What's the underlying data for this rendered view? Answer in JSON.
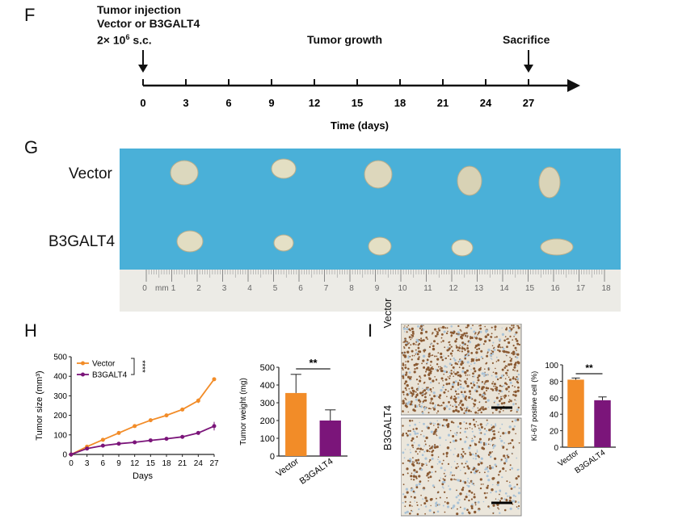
{
  "panels": {
    "f": "F",
    "g": "G",
    "h": "H",
    "i": "I"
  },
  "timeline": {
    "injection_line1": "Tumor injection",
    "injection_line2": "Vector or B3GALT4",
    "injection_line3_prefix": "2× 10",
    "injection_line3_sup": "6",
    "injection_line3_suffix": " s.c.",
    "growth_label": "Tumor growth",
    "sacrifice_label": "Sacrifice",
    "ticks": [
      "0",
      "3",
      "6",
      "9",
      "12",
      "15",
      "18",
      "21",
      "24",
      "27"
    ],
    "axis_title": "Time (days)"
  },
  "photo": {
    "row_labels": [
      "Vector",
      "B3GALT4"
    ],
    "ruler_unit": "mm",
    "ruler_numbers": [
      "0",
      "1",
      "2",
      "3",
      "4",
      "5",
      "6",
      "7",
      "8",
      "9",
      "10",
      "11",
      "12",
      "13",
      "14",
      "15",
      "16",
      "17",
      "18"
    ],
    "background_color": "#4ab0d8"
  },
  "ihc": {
    "row_labels": [
      "Vector",
      "B3GALT4"
    ]
  },
  "colors": {
    "vector": "#f28c28",
    "b3galt4": "#7b157a"
  },
  "chart_data": [
    {
      "type": "line",
      "xlabel": "Days",
      "ylabel": "Tumor size (mm³)",
      "xlim": [
        0,
        27
      ],
      "ylim": [
        0,
        500
      ],
      "xticks": [
        "0",
        "3",
        "6",
        "9",
        "12",
        "15",
        "18",
        "21",
        "24",
        "27"
      ],
      "yticks": [
        "0",
        "100",
        "200",
        "300",
        "400",
        "500"
      ],
      "x": [
        0,
        3,
        6,
        9,
        12,
        15,
        18,
        21,
        24,
        27
      ],
      "series": [
        {
          "name": "Vector",
          "values": [
            0,
            40,
            75,
            110,
            145,
            175,
            200,
            230,
            275,
            385
          ],
          "error": [
            0,
            5,
            6,
            6,
            7,
            8,
            8,
            9,
            12,
            8
          ]
        },
        {
          "name": "B3GALT4",
          "values": [
            0,
            30,
            45,
            55,
            62,
            72,
            80,
            90,
            110,
            145
          ],
          "error": [
            0,
            4,
            5,
            5,
            5,
            6,
            6,
            7,
            9,
            22
          ]
        }
      ],
      "legend": "top-left",
      "annotation": "****"
    },
    {
      "type": "bar",
      "ylabel": "Tumor weight (mg)",
      "categories": [
        "Vector",
        "B3GALT4"
      ],
      "values": [
        355,
        200
      ],
      "errors": [
        105,
        60
      ],
      "ylim": [
        0,
        500
      ],
      "yticks": [
        "0",
        "100",
        "200",
        "300",
        "400",
        "500"
      ],
      "annotation": "**"
    },
    {
      "type": "bar",
      "ylabel": "Ki-67 positive cell (%)",
      "categories": [
        "Vector",
        "B3GALT4"
      ],
      "values": [
        82,
        57
      ],
      "errors": [
        2,
        4
      ],
      "ylim": [
        0,
        100
      ],
      "yticks": [
        "0",
        "20",
        "40",
        "60",
        "80",
        "100"
      ],
      "annotation": "**"
    }
  ]
}
